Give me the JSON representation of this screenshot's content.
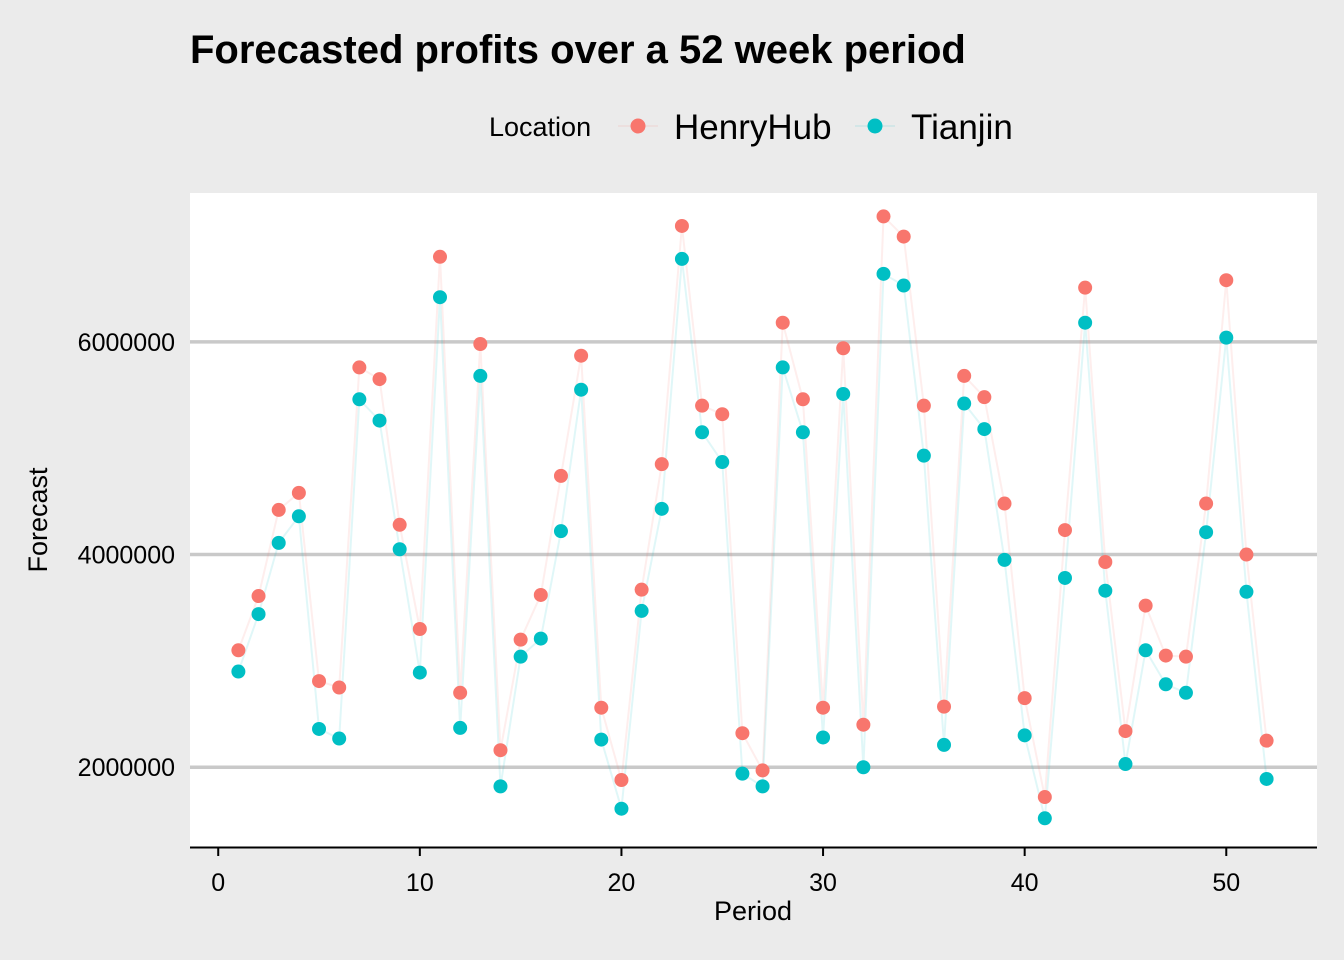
{
  "chart_data": {
    "type": "scatter",
    "title": "Forecasted profits over a 52 week period",
    "xlabel": "Period",
    "ylabel": "Forecast",
    "legend": {
      "title": "Location",
      "placement": "top",
      "entries": [
        "HenryHub",
        "Tianjin"
      ]
    },
    "xlim": [
      -1.4,
      54.5
    ],
    "ylim": [
      1250000,
      7400000
    ],
    "x_ticks": [
      0,
      10,
      20,
      30,
      40,
      50
    ],
    "x_tick_labels": [
      "0",
      "10",
      "20",
      "30",
      "40",
      "50"
    ],
    "y_ticks": [
      2000000,
      4000000,
      6000000
    ],
    "y_tick_labels": [
      "2000000",
      "4000000",
      "6000000"
    ],
    "grid": "horizontal major only",
    "x": [
      1,
      2,
      3,
      4,
      5,
      6,
      7,
      8,
      9,
      10,
      11,
      12,
      13,
      14,
      15,
      16,
      17,
      18,
      19,
      20,
      21,
      22,
      23,
      24,
      25,
      26,
      27,
      28,
      29,
      30,
      31,
      32,
      33,
      34,
      35,
      36,
      37,
      38,
      39,
      40,
      41,
      42,
      43,
      44,
      45,
      46,
      47,
      48,
      49,
      50,
      51,
      52
    ],
    "series": [
      {
        "name": "HenryHub",
        "color": "#f8766d",
        "values": [
          3100000,
          3610000,
          4420000,
          4580000,
          2810000,
          2750000,
          5760000,
          5650000,
          4280000,
          3300000,
          6800000,
          2700000,
          5980000,
          2160000,
          3200000,
          3620000,
          4740000,
          5870000,
          2560000,
          1880000,
          3670000,
          4850000,
          7090000,
          5400000,
          5320000,
          2320000,
          1970000,
          6180000,
          5460000,
          2560000,
          5940000,
          2400000,
          7180000,
          6990000,
          5400000,
          2570000,
          5680000,
          5480000,
          4480000,
          2650000,
          1720000,
          4230000,
          6510000,
          3930000,
          2340000,
          3520000,
          3050000,
          3040000,
          4480000,
          6580000,
          4000000,
          2250000
        ]
      },
      {
        "name": "Tianjin",
        "color": "#00bfc4",
        "values": [
          2900000,
          3440000,
          4110000,
          4360000,
          2360000,
          2270000,
          5460000,
          5260000,
          4050000,
          2890000,
          6420000,
          2370000,
          5680000,
          1820000,
          3040000,
          3210000,
          4220000,
          5550000,
          2260000,
          1610000,
          3470000,
          4430000,
          6780000,
          5150000,
          4870000,
          1940000,
          1820000,
          5760000,
          5150000,
          2280000,
          5510000,
          2000000,
          6640000,
          6530000,
          4930000,
          2210000,
          5420000,
          5180000,
          3950000,
          2300000,
          1520000,
          3780000,
          6180000,
          3660000,
          2030000,
          3100000,
          2780000,
          2700000,
          4210000,
          6040000,
          3650000,
          1890000
        ]
      }
    ]
  }
}
